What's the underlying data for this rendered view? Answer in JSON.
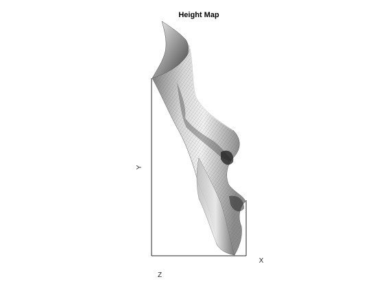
{
  "chart_data": {
    "type": "surface",
    "title": "Height Map",
    "xlabel": "X",
    "ylabel": "Y",
    "zlabel": "Z",
    "colormap": "gray",
    "grid": false,
    "box": true,
    "view": "3d-perspective"
  }
}
